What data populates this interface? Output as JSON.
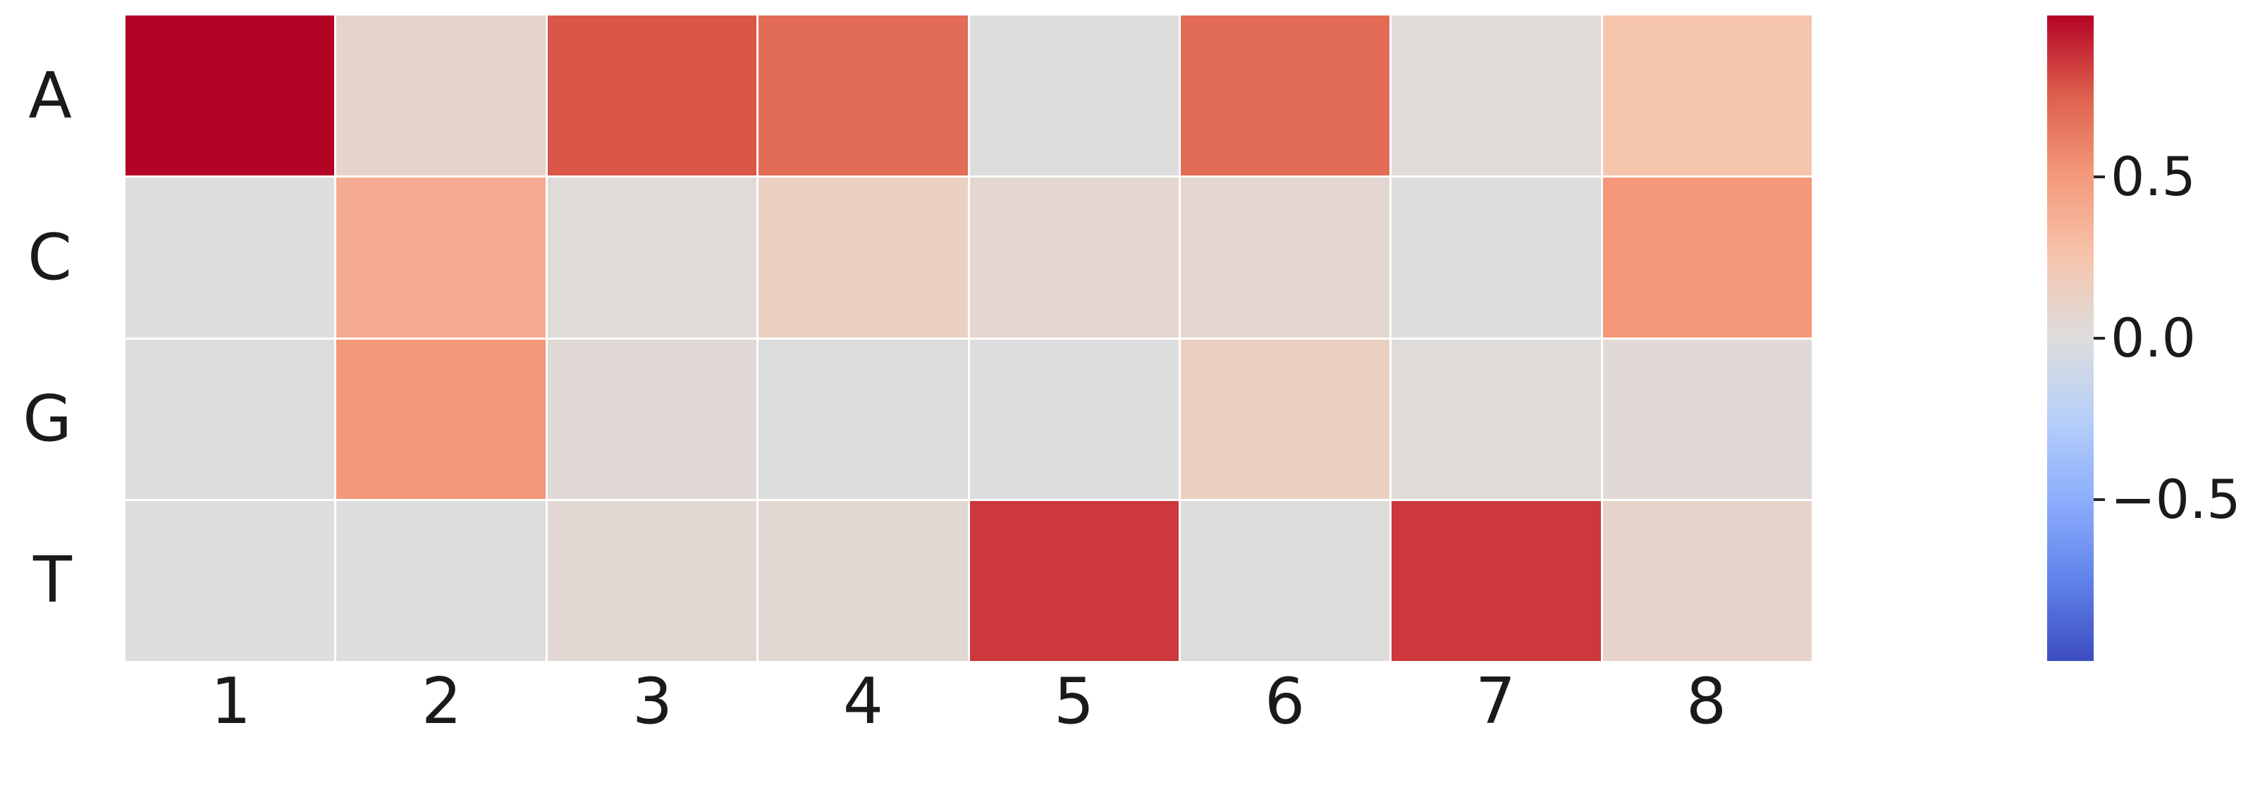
{
  "figure": {
    "background": "#ffffff",
    "text_color": "#1a1a1a",
    "gridline_color": "#ffffff"
  },
  "chart_data": {
    "type": "heatmap",
    "title": "",
    "xlabel": "",
    "ylabel": "",
    "rows": [
      "A",
      "C",
      "G",
      "T"
    ],
    "columns": [
      "1",
      "2",
      "3",
      "4",
      "5",
      "6",
      "7",
      "8"
    ],
    "values": [
      [
        1.0,
        0.1,
        0.78,
        0.7,
        0.0,
        0.7,
        0.02,
        0.25
      ],
      [
        0.0,
        0.4,
        0.02,
        0.14,
        0.07,
        0.07,
        0.0,
        0.51
      ],
      [
        0.01,
        0.51,
        0.04,
        0.0,
        0.0,
        0.14,
        0.02,
        0.04
      ],
      [
        0.0,
        0.0,
        0.05,
        0.05,
        0.86,
        0.01,
        0.86,
        0.1
      ]
    ],
    "colormap": "coolwarm",
    "vmin": -1.0,
    "vmax": 1.0,
    "legend_position": "right",
    "grid": "white cell separators",
    "colorbar": {
      "ticks": [
        0.5,
        0.0,
        -0.5
      ],
      "tick_labels": [
        "0.5",
        "0.0",
        "−0.5"
      ],
      "top_color": "#b40426",
      "center_color": "#dddddd",
      "bottom_color": "#3b4cc0"
    }
  }
}
